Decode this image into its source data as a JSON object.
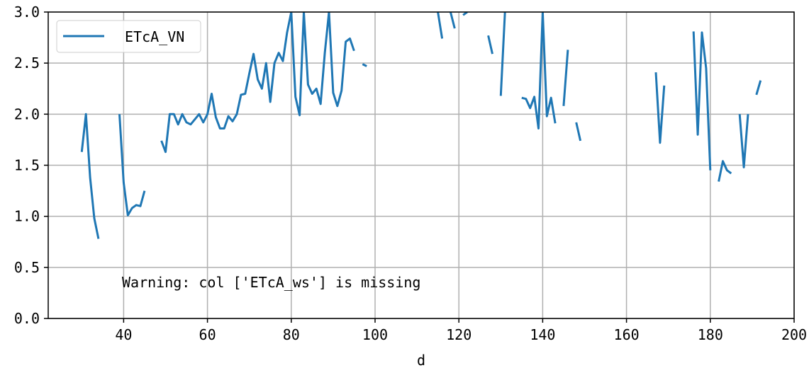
{
  "chart_data": {
    "type": "line",
    "title": "",
    "xlabel": "d",
    "ylabel": "",
    "xlim": [
      22,
      200
    ],
    "ylim": [
      0,
      3.0
    ],
    "x_ticks": [
      40,
      60,
      80,
      100,
      120,
      140,
      160,
      180,
      200
    ],
    "x_tick_labels": [
      "40",
      "60",
      "80",
      "100",
      "120",
      "140",
      "160",
      "180",
      "200"
    ],
    "y_ticks": [
      0,
      0.5,
      1.0,
      1.5,
      2.0,
      2.5,
      3.0
    ],
    "y_tick_labels": [
      "0.0",
      "0.5",
      "1.0",
      "1.5",
      "2.0",
      "2.5",
      "3.0"
    ],
    "grid": true,
    "legend_position": "top-left",
    "annotation": "Warning: col ['ETcA_ws'] is missing",
    "series": [
      {
        "name": "ETcA_VN",
        "color": "#1f77b4",
        "x": [
          30,
          31,
          32,
          33,
          34,
          35,
          36,
          37,
          38,
          39,
          40,
          41,
          42,
          43,
          44,
          45,
          46,
          47,
          48,
          49,
          50,
          51,
          52,
          53,
          54,
          55,
          56,
          57,
          58,
          59,
          60,
          61,
          62,
          63,
          64,
          65,
          66,
          67,
          68,
          69,
          70,
          71,
          72,
          73,
          74,
          75,
          76,
          77,
          78,
          79,
          80,
          81,
          82,
          83,
          84,
          85,
          86,
          87,
          88,
          89,
          90,
          91,
          92,
          93,
          94,
          95,
          96,
          97,
          98,
          99,
          100,
          101,
          102,
          103,
          104,
          105,
          106,
          107,
          108,
          109,
          110,
          111,
          112,
          113,
          114,
          115,
          116,
          117,
          118,
          119,
          120,
          121,
          122,
          123,
          124,
          125,
          126,
          127,
          128,
          129,
          130,
          131,
          132,
          133,
          134,
          135,
          136,
          137,
          138,
          139,
          140,
          141,
          142,
          143,
          144,
          145,
          146,
          147,
          148,
          149,
          150,
          151,
          152,
          153,
          154,
          155,
          156,
          157,
          158,
          159,
          160,
          161,
          162,
          163,
          164,
          165,
          166,
          167,
          168,
          169,
          170,
          171,
          172,
          173,
          174,
          175,
          176,
          177,
          178,
          179,
          180,
          181,
          182,
          183,
          184,
          185,
          186,
          187,
          188,
          189,
          190,
          191,
          192
        ],
        "y": [
          1.63,
          2.0,
          1.38,
          0.98,
          0.78,
          null,
          null,
          null,
          null,
          2.0,
          1.33,
          1.01,
          1.08,
          1.11,
          1.1,
          1.25,
          null,
          null,
          null,
          1.74,
          1.63,
          2.0,
          2.0,
          1.9,
          2.0,
          1.92,
          1.9,
          1.95,
          2.0,
          1.92,
          2.0,
          2.2,
          1.97,
          1.86,
          1.86,
          1.98,
          1.93,
          2.0,
          2.19,
          2.2,
          2.4,
          2.59,
          2.34,
          2.25,
          2.5,
          2.12,
          2.5,
          2.6,
          2.52,
          2.8,
          3.0,
          2.17,
          1.99,
          3.0,
          2.29,
          2.2,
          2.25,
          2.1,
          2.6,
          3.0,
          2.21,
          2.08,
          2.23,
          2.71,
          2.74,
          2.62,
          null,
          2.49,
          2.47,
          null,
          null,
          null,
          null,
          null,
          null,
          null,
          null,
          null,
          null,
          null,
          null,
          null,
          null,
          null,
          null,
          3.0,
          2.74,
          null,
          3.0,
          2.84,
          null,
          2.97,
          3.0,
          null,
          null,
          2.94,
          null,
          2.77,
          2.59,
          null,
          2.18,
          3.0,
          null,
          null,
          null,
          2.16,
          2.15,
          2.06,
          2.17,
          1.86,
          3.0,
          1.98,
          2.16,
          1.91,
          null,
          2.08,
          2.63,
          null,
          1.92,
          1.74,
          null,
          null,
          null,
          null,
          null,
          null,
          null,
          null,
          null,
          null,
          null,
          null,
          null,
          null,
          null,
          null,
          null,
          2.41,
          1.72,
          2.28,
          null,
          null,
          null,
          null,
          null,
          null,
          2.81,
          1.8,
          2.8,
          2.45,
          1.45,
          null,
          1.34,
          1.54,
          1.45,
          1.42,
          null,
          2.0,
          1.48,
          2.0,
          null,
          2.19,
          2.33
        ]
      }
    ]
  }
}
